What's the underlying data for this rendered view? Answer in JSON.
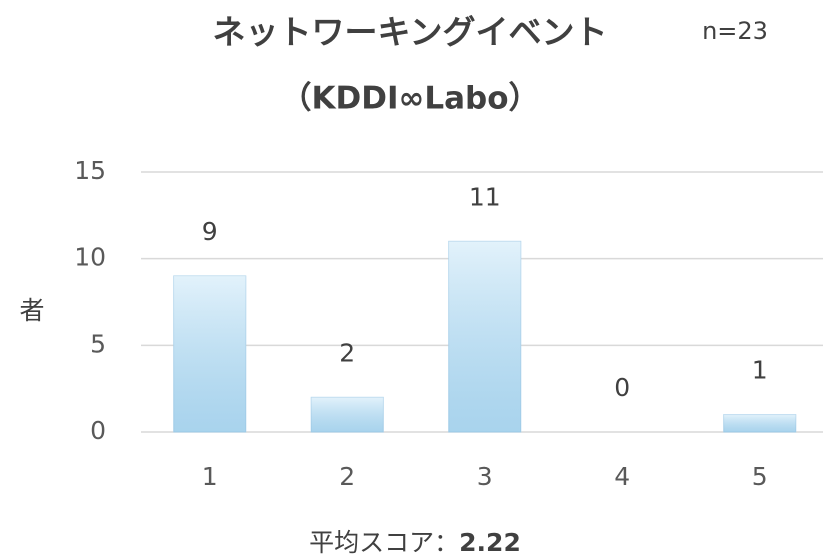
{
  "chart_data": {
    "type": "bar",
    "title": "ネットワーキングイベント",
    "annotation": "n=23",
    "subtitle": "（KDDI∞Labo）",
    "ylabel": "者",
    "xlabel": [
      "平均スコア：",
      "2.22"
    ],
    "categories": [
      "1",
      "2",
      "3",
      "4",
      "5"
    ],
    "values": [
      9,
      2,
      11,
      0,
      1
    ],
    "color": "#bfe2f6",
    "ylim": [
      0,
      15
    ],
    "yticks": [
      0,
      5,
      10,
      15
    ],
    "grid": true
  }
}
